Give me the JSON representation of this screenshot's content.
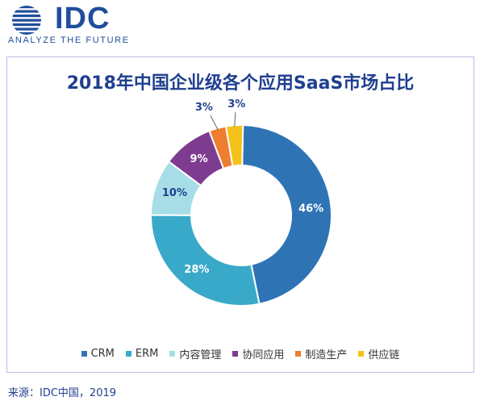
{
  "logo": {
    "wordmark": "IDC",
    "tagline": "ANALYZE THE FUTURE"
  },
  "source": "来源：IDC中国，2019",
  "colors": {
    "brand": "#1f4e9c",
    "title": "#1f3f8f",
    "card_border": "#b9bde6"
  },
  "chart_data": {
    "type": "pie",
    "donut": true,
    "title": "2018年中国企业级各个应用SaaS市场占比",
    "legend_position": "bottom",
    "categories": [
      "CRM",
      "ERM",
      "内容管理",
      "协同应用",
      "制造生产",
      "供应链"
    ],
    "values": [
      46,
      28,
      10,
      9,
      3,
      3
    ],
    "labels": [
      "46%",
      "28%",
      "10%",
      "9%",
      "3%",
      "3%"
    ],
    "colors": [
      "#2e74b5",
      "#39a9c9",
      "#a7dde6",
      "#7d3c8f",
      "#ed7d31",
      "#f2c21b"
    ]
  }
}
